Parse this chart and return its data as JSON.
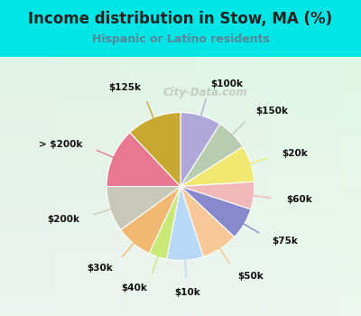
{
  "title": "Income distribution in Stow, MA (%)",
  "subtitle": "Hispanic or Latino residents",
  "background_color": "#00e5e5",
  "chart_bg_top_left": "#d8f0e8",
  "chart_bg_bottom_right": "#e8f8f0",
  "watermark": "City-Data.com",
  "labels": [
    "$100k",
    "$150k",
    "$20k",
    "$60k",
    "$75k",
    "$50k",
    "$10k",
    "$40k",
    "$30k",
    "$200k",
    "> $200k",
    "$125k"
  ],
  "values": [
    9,
    7,
    8,
    6,
    7,
    8,
    8,
    4,
    8,
    10,
    13,
    12
  ],
  "colors": [
    "#b0a8d8",
    "#b8ccb0",
    "#f0e870",
    "#f0b8b8",
    "#8888cc",
    "#f8c898",
    "#b8d8f8",
    "#c8e878",
    "#f0b870",
    "#c8c8b8",
    "#e87890",
    "#c8a830"
  ],
  "title_fontsize": 12,
  "subtitle_fontsize": 9,
  "label_fontsize": 7.5
}
